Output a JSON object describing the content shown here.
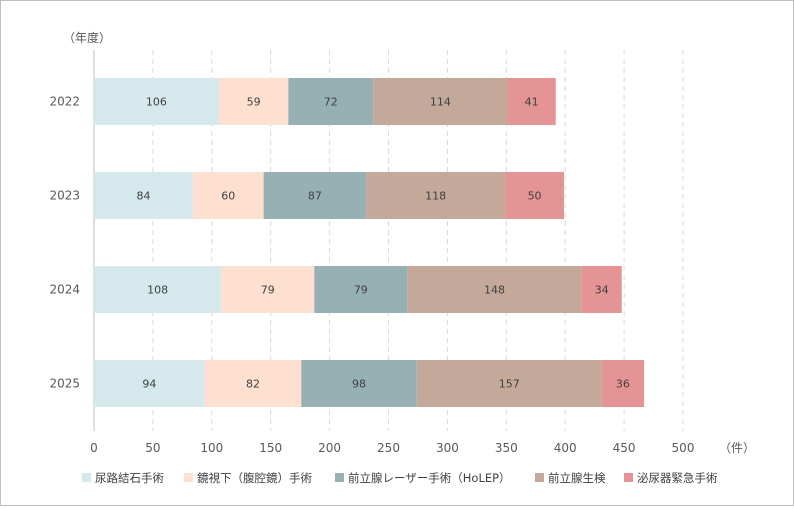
{
  "chart_data": {
    "type": "bar",
    "orientation": "horizontal",
    "stacked": true,
    "categories": [
      "2022",
      "2023",
      "2024",
      "2025"
    ],
    "ylabel": "（年度）",
    "xlabel": "（件）",
    "xlim": [
      0,
      500
    ],
    "xticks": [
      0,
      50,
      100,
      150,
      200,
      250,
      300,
      350,
      400,
      450,
      500
    ],
    "grid": "vertical-dashed",
    "legend_position": "bottom",
    "series": [
      {
        "name": "尿路結石手術",
        "color": "#d5e9ec",
        "values": [
          106,
          84,
          108,
          94
        ]
      },
      {
        "name": "鏡視下（腹腔鏡）手術",
        "color": "#fde0d0",
        "values": [
          59,
          60,
          79,
          82
        ]
      },
      {
        "name": "前立腺レーザー手術（HoLEP）",
        "color": "#96b0b4",
        "values": [
          72,
          87,
          79,
          98
        ]
      },
      {
        "name": "前立腺生検",
        "color": "#c4a99a",
        "values": [
          114,
          118,
          148,
          157
        ]
      },
      {
        "name": "泌尿器緊急手術",
        "color": "#e49494",
        "values": [
          41,
          50,
          34,
          36
        ]
      }
    ]
  }
}
